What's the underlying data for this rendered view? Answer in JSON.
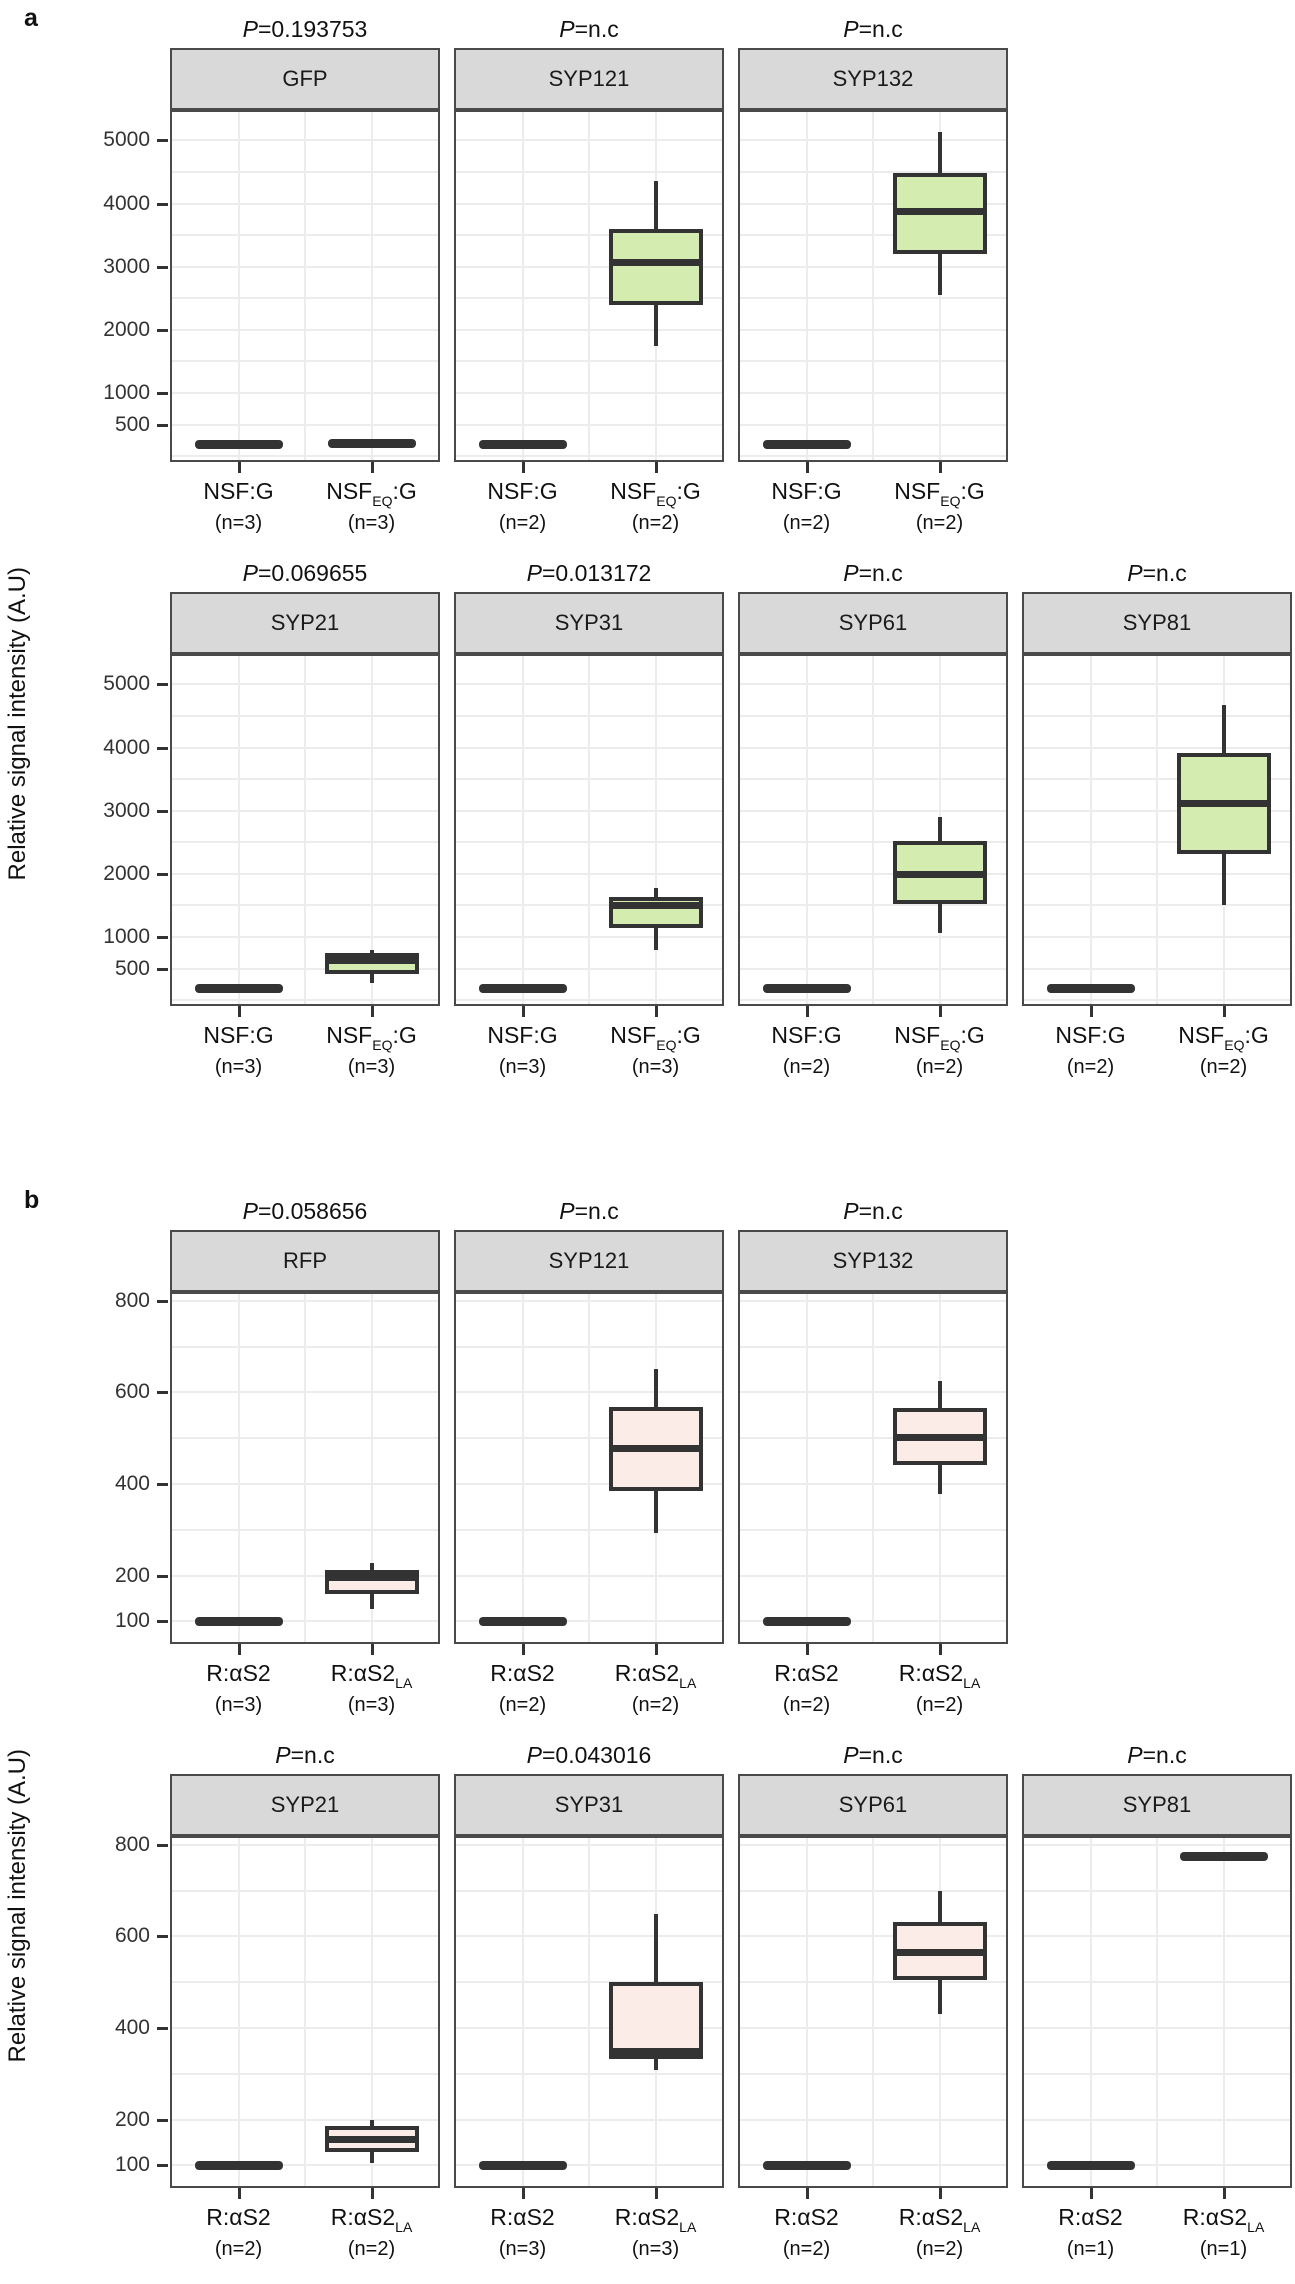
{
  "figure": {
    "panel_a_label": "a",
    "panel_b_label": "b",
    "ylabel": "Relative signal intensity (A.U)"
  },
  "chart_data": [
    {
      "id": "a",
      "type": "box",
      "panel_label": "a",
      "ylabel": "Relative signal intensity (A.U)",
      "box_fill": "#d5ecb0",
      "ylim": [
        -60,
        5450
      ],
      "yticks": [
        500,
        1000,
        2000,
        3000,
        4000,
        5000
      ],
      "grid_step": 500,
      "legend": "none",
      "rows": [
        {
          "facets": [
            {
              "title": "GFP",
              "p_label": "P=0.193753",
              "categories": [
                {
                  "pre": "NSF:G",
                  "sub": "",
                  "post": "",
                  "n": "(n=3)",
                  "stats": {
                    "type": "line",
                    "value": 190
                  }
                },
                {
                  "pre": "NSF",
                  "sub": "EQ",
                  "post": ":G",
                  "n": "(n=3)",
                  "stats": {
                    "type": "line",
                    "value": 215
                  }
                }
              ]
            },
            {
              "title": "SYP121",
              "p_label": "P=n.c",
              "categories": [
                {
                  "pre": "NSF:G",
                  "sub": "",
                  "post": "",
                  "n": "(n=2)",
                  "stats": {
                    "type": "line",
                    "value": 190
                  }
                },
                {
                  "pre": "NSF",
                  "sub": "EQ",
                  "post": ":G",
                  "n": "(n=2)",
                  "stats": {
                    "type": "box",
                    "min": 1750,
                    "q1": 2400,
                    "median": 3080,
                    "q3": 3600,
                    "max": 4350
                  }
                }
              ]
            },
            {
              "title": "SYP132",
              "p_label": "P=n.c",
              "categories": [
                {
                  "pre": "NSF:G",
                  "sub": "",
                  "post": "",
                  "n": "(n=2)",
                  "stats": {
                    "type": "line",
                    "value": 190
                  }
                },
                {
                  "pre": "NSF",
                  "sub": "EQ",
                  "post": ":G",
                  "n": "(n=2)",
                  "stats": {
                    "type": "box",
                    "min": 2550,
                    "q1": 3200,
                    "median": 3880,
                    "q3": 4480,
                    "max": 5130
                  }
                }
              ]
            }
          ]
        },
        {
          "facets": [
            {
              "title": "SYP21",
              "p_label": "P=0.069655",
              "categories": [
                {
                  "pre": "NSF:G",
                  "sub": "",
                  "post": "",
                  "n": "(n=3)",
                  "stats": {
                    "type": "line",
                    "value": 190
                  }
                },
                {
                  "pre": "NSF",
                  "sub": "EQ",
                  "post": ":G",
                  "n": "(n=3)",
                  "stats": {
                    "type": "box",
                    "min": 280,
                    "q1": 420,
                    "median": 630,
                    "q3": 740,
                    "max": 800
                  }
                }
              ]
            },
            {
              "title": "SYP31",
              "p_label": "P=0.013172",
              "categories": [
                {
                  "pre": "NSF:G",
                  "sub": "",
                  "post": "",
                  "n": "(n=3)",
                  "stats": {
                    "type": "line",
                    "value": 190
                  }
                },
                {
                  "pre": "NSF",
                  "sub": "EQ",
                  "post": ":G",
                  "n": "(n=3)",
                  "stats": {
                    "type": "box",
                    "min": 790,
                    "q1": 1150,
                    "median": 1500,
                    "q3": 1640,
                    "max": 1780
                  }
                }
              ]
            },
            {
              "title": "SYP61",
              "p_label": "P=n.c",
              "categories": [
                {
                  "pre": "NSF:G",
                  "sub": "",
                  "post": "",
                  "n": "(n=2)",
                  "stats": {
                    "type": "line",
                    "value": 190
                  }
                },
                {
                  "pre": "NSF",
                  "sub": "EQ",
                  "post": ":G",
                  "n": "(n=2)",
                  "stats": {
                    "type": "box",
                    "min": 1060,
                    "q1": 1520,
                    "median": 2000,
                    "q3": 2520,
                    "max": 2900
                  }
                }
              ]
            },
            {
              "title": "SYP81",
              "p_label": "P=n.c",
              "categories": [
                {
                  "pre": "NSF:G",
                  "sub": "",
                  "post": "",
                  "n": "(n=2)",
                  "stats": {
                    "type": "line",
                    "value": 190
                  }
                },
                {
                  "pre": "NSF",
                  "sub": "EQ",
                  "post": ":G",
                  "n": "(n=2)",
                  "stats": {
                    "type": "box",
                    "min": 1500,
                    "q1": 2320,
                    "median": 3120,
                    "q3": 3920,
                    "max": 4680
                  }
                }
              ]
            }
          ]
        }
      ]
    },
    {
      "id": "b",
      "type": "box",
      "panel_label": "b",
      "ylabel": "Relative signal intensity (A.U)",
      "box_fill": "#fcece8",
      "ylim": [
        55,
        815
      ],
      "yticks": [
        100,
        200,
        400,
        600,
        800
      ],
      "grid_step": 100,
      "legend": "none",
      "rows": [
        {
          "facets": [
            {
              "title": "RFP",
              "p_label": "P=0.058656",
              "categories": [
                {
                  "pre": "R:αS2",
                  "sub": "",
                  "post": "",
                  "n": "(n=3)",
                  "stats": {
                    "type": "line",
                    "value": 100
                  }
                },
                {
                  "pre": "R:αS2",
                  "sub": "LA",
                  "post": "",
                  "n": "(n=3)",
                  "stats": {
                    "type": "box",
                    "min": 128,
                    "q1": 160,
                    "median": 196,
                    "q3": 212,
                    "max": 228
                  }
                }
              ]
            },
            {
              "title": "SYP121",
              "p_label": "P=n.c",
              "categories": [
                {
                  "pre": "R:αS2",
                  "sub": "",
                  "post": "",
                  "n": "(n=2)",
                  "stats": {
                    "type": "line",
                    "value": 100
                  }
                },
                {
                  "pre": "R:αS2",
                  "sub": "LA",
                  "post": "",
                  "n": "(n=2)",
                  "stats": {
                    "type": "box",
                    "min": 292,
                    "q1": 385,
                    "median": 478,
                    "q3": 568,
                    "max": 652
                  }
                }
              ]
            },
            {
              "title": "SYP132",
              "p_label": "P=n.c",
              "categories": [
                {
                  "pre": "R:αS2",
                  "sub": "",
                  "post": "",
                  "n": "(n=2)",
                  "stats": {
                    "type": "line",
                    "value": 100
                  }
                },
                {
                  "pre": "R:αS2",
                  "sub": "LA",
                  "post": "",
                  "n": "(n=2)",
                  "stats": {
                    "type": "box",
                    "min": 378,
                    "q1": 442,
                    "median": 502,
                    "q3": 566,
                    "max": 625
                  }
                }
              ]
            }
          ]
        },
        {
          "facets": [
            {
              "title": "SYP21",
              "p_label": "P=n.c",
              "categories": [
                {
                  "pre": "R:αS2",
                  "sub": "",
                  "post": "",
                  "n": "(n=2)",
                  "stats": {
                    "type": "line",
                    "value": 100
                  }
                },
                {
                  "pre": "R:αS2",
                  "sub": "LA",
                  "post": "",
                  "n": "(n=2)",
                  "stats": {
                    "type": "box",
                    "min": 106,
                    "q1": 130,
                    "median": 158,
                    "q3": 186,
                    "max": 200
                  }
                }
              ]
            },
            {
              "title": "SYP31",
              "p_label": "P=0.043016",
              "categories": [
                {
                  "pre": "R:αS2",
                  "sub": "",
                  "post": "",
                  "n": "(n=3)",
                  "stats": {
                    "type": "line",
                    "value": 100
                  }
                },
                {
                  "pre": "R:αS2",
                  "sub": "LA",
                  "post": "",
                  "n": "(n=3)",
                  "stats": {
                    "type": "box",
                    "min": 308,
                    "q1": 333,
                    "median": 350,
                    "q3": 500,
                    "max": 650
                  }
                }
              ]
            },
            {
              "title": "SYP61",
              "p_label": "P=n.c",
              "categories": [
                {
                  "pre": "R:αS2",
                  "sub": "",
                  "post": "",
                  "n": "(n=2)",
                  "stats": {
                    "type": "line",
                    "value": 100
                  }
                },
                {
                  "pre": "R:αS2",
                  "sub": "LA",
                  "post": "",
                  "n": "(n=2)",
                  "stats": {
                    "type": "box",
                    "min": 430,
                    "q1": 505,
                    "median": 565,
                    "q3": 632,
                    "max": 700
                  }
                }
              ]
            },
            {
              "title": "SYP81",
              "p_label": "P=n.c",
              "categories": [
                {
                  "pre": "R:αS2",
                  "sub": "",
                  "post": "",
                  "n": "(n=1)",
                  "stats": {
                    "type": "line",
                    "value": 100
                  }
                },
                {
                  "pre": "R:αS2",
                  "sub": "LA",
                  "post": "",
                  "n": "(n=1)",
                  "stats": {
                    "type": "line",
                    "value": 775
                  }
                }
              ]
            }
          ]
        }
      ]
    }
  ],
  "style": {
    "strip_bg": "#d9d9d9",
    "panel_border": "#4a4a4a",
    "grid_color": "#ececec",
    "box_stroke": "#333333"
  }
}
